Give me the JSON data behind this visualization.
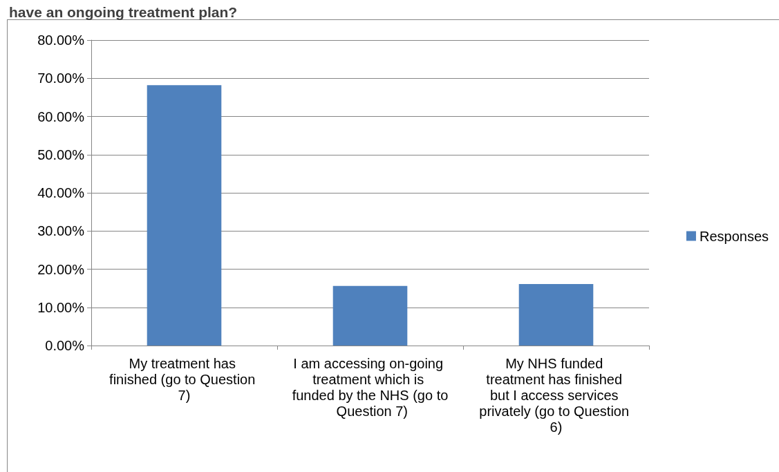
{
  "chart_data": {
    "type": "bar",
    "title": "have an ongoing treatment plan?",
    "categories": [
      "My treatment has finished (go to Question 7)",
      "I am accessing on-going treatment which is funded by the NHS (go to Question 7)",
      "My NHS funded treatment has finished but I access services privately (go to Question 6)"
    ],
    "series": [
      {
        "name": "Responses",
        "color": "#4f81bd",
        "values": [
          68.2,
          15.6,
          16.1
        ]
      }
    ],
    "ylim": [
      0,
      80
    ],
    "yticks": [
      {
        "value": 0,
        "label": "0.00%"
      },
      {
        "value": 10,
        "label": "10.00%"
      },
      {
        "value": 20,
        "label": "20.00%"
      },
      {
        "value": 30,
        "label": "30.00%"
      },
      {
        "value": 40,
        "label": "40.00%"
      },
      {
        "value": 50,
        "label": "50.00%"
      },
      {
        "value": 60,
        "label": "60.00%"
      },
      {
        "value": 70,
        "label": "70.00%"
      },
      {
        "value": 80,
        "label": "80.00%"
      }
    ],
    "grid": "y",
    "legend": "right"
  }
}
